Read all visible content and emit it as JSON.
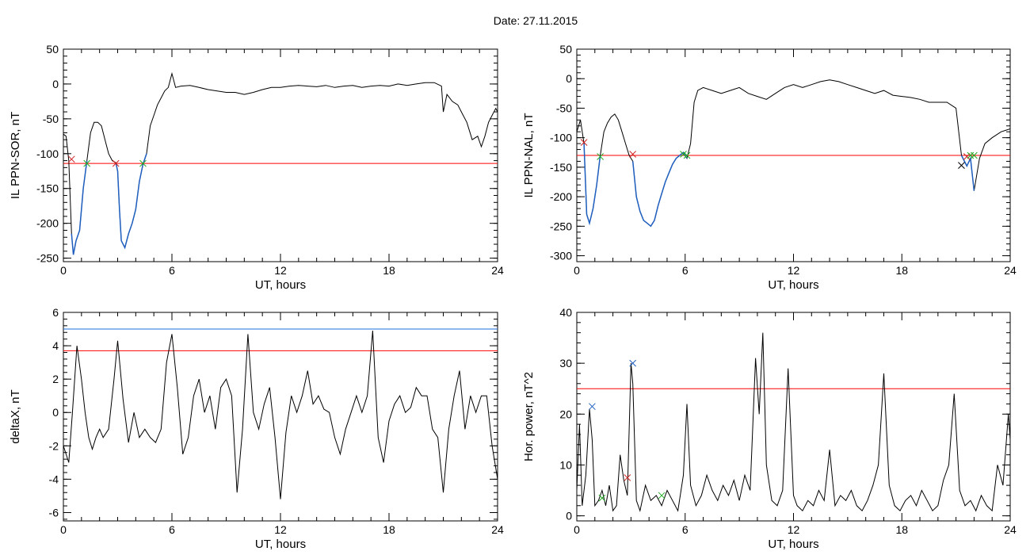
{
  "figure": {
    "title": "Date:  27.11.2015"
  },
  "colors": {
    "series": "#000000",
    "threshold": "#ff0000",
    "highlight": "#1f5fbf",
    "threshold_blue": "#1f6fdf",
    "marker_red": "#cc2222",
    "marker_green": "#22aa22",
    "marker_blue": "#1f5fbf",
    "marker_black": "#000000"
  },
  "chart_data": [
    {
      "type": "line",
      "panel": "top-left",
      "title": "",
      "xlabel": "UT, hours",
      "ylabel": "IL PPN-SOR, nT",
      "xlim": [
        0,
        24
      ],
      "ylim": [
        -255,
        50
      ],
      "xticks": [
        0,
        6,
        12,
        18,
        24
      ],
      "yticks": [
        50,
        0,
        -50,
        -100,
        -150,
        -200,
        -250
      ],
      "threshold": -114,
      "x": [
        0.0,
        0.15,
        0.3,
        0.45,
        0.55,
        0.7,
        0.9,
        1.1,
        1.3,
        1.5,
        1.7,
        1.9,
        2.1,
        2.3,
        2.5,
        2.7,
        2.9,
        3.0,
        3.1,
        3.2,
        3.4,
        3.6,
        3.8,
        4.0,
        4.2,
        4.4,
        4.6,
        4.8,
        5.0,
        5.2,
        5.4,
        5.6,
        5.8,
        5.9,
        6.0,
        6.1,
        6.2,
        6.5,
        7.0,
        7.5,
        8.0,
        8.5,
        9.0,
        9.5,
        10.0,
        10.5,
        11.0,
        11.5,
        12.0,
        12.5,
        13.0,
        13.5,
        14.0,
        14.5,
        15.0,
        15.5,
        16.0,
        16.5,
        17.0,
        17.5,
        18.0,
        18.5,
        19.0,
        19.5,
        20.0,
        20.5,
        20.9,
        21.0,
        21.2,
        21.5,
        21.8,
        22.0,
        22.3,
        22.6,
        22.9,
        23.1,
        23.3,
        23.5,
        23.7,
        23.9,
        24.0
      ],
      "y": [
        -72,
        -75,
        -110,
        -215,
        -245,
        -225,
        -210,
        -150,
        -110,
        -70,
        -55,
        -55,
        -60,
        -80,
        -100,
        -110,
        -113,
        -125,
        -180,
        -225,
        -235,
        -215,
        -200,
        -180,
        -140,
        -115,
        -100,
        -60,
        -45,
        -30,
        -20,
        -10,
        -5,
        5,
        15,
        5,
        -5,
        -3,
        -2,
        -5,
        -8,
        -10,
        -12,
        -12,
        -15,
        -12,
        -8,
        -5,
        -5,
        -3,
        -2,
        -3,
        -4,
        -2,
        -5,
        -3,
        -2,
        -5,
        -3,
        -2,
        -3,
        0,
        -2,
        0,
        2,
        2,
        -3,
        -40,
        -15,
        -25,
        -30,
        -40,
        -55,
        -80,
        -75,
        -90,
        -75,
        -55,
        -45,
        -35,
        -40
      ],
      "highlight_ranges": [
        [
          0.45,
          1.3
        ],
        [
          2.9,
          4.6
        ]
      ],
      "markers": [
        {
          "x": 0.45,
          "y": -108,
          "color": "marker_red"
        },
        {
          "x": 1.3,
          "y": -114,
          "color": "marker_green"
        },
        {
          "x": 2.9,
          "y": -114,
          "color": "marker_red"
        },
        {
          "x": 4.4,
          "y": -114,
          "color": "marker_green"
        }
      ]
    },
    {
      "type": "line",
      "panel": "top-right",
      "title": "",
      "xlabel": "UT, hours",
      "ylabel": "IL PPN-NAL, nT",
      "xlim": [
        0,
        24
      ],
      "ylim": [
        -310,
        50
      ],
      "xticks": [
        0,
        6,
        12,
        18,
        24
      ],
      "yticks": [
        50,
        0,
        -50,
        -100,
        -150,
        -200,
        -250,
        -300
      ],
      "threshold": -130,
      "x": [
        0.0,
        0.2,
        0.4,
        0.55,
        0.7,
        0.9,
        1.1,
        1.3,
        1.5,
        1.7,
        1.9,
        2.1,
        2.3,
        2.5,
        2.7,
        2.9,
        3.1,
        3.3,
        3.5,
        3.7,
        3.9,
        4.1,
        4.3,
        4.5,
        4.7,
        4.9,
        5.1,
        5.3,
        5.5,
        5.7,
        5.9,
        6.1,
        6.3,
        6.5,
        6.7,
        7.0,
        7.5,
        8.0,
        8.5,
        9.0,
        9.5,
        10.0,
        10.5,
        11.0,
        11.5,
        12.0,
        12.5,
        13.0,
        13.5,
        14.0,
        14.5,
        15.0,
        15.5,
        16.0,
        16.5,
        17.0,
        17.5,
        18.0,
        18.5,
        19.0,
        19.5,
        20.0,
        20.5,
        21.0,
        21.3,
        21.6,
        21.8,
        22.0,
        22.3,
        22.6,
        23.0,
        23.5,
        24.0
      ],
      "y": [
        -90,
        -70,
        -110,
        -230,
        -245,
        -220,
        -180,
        -130,
        -90,
        -75,
        -65,
        -60,
        -70,
        -90,
        -110,
        -130,
        -140,
        -200,
        -225,
        -240,
        -245,
        -250,
        -240,
        -215,
        -195,
        -175,
        -160,
        -145,
        -135,
        -130,
        -125,
        -135,
        -110,
        -40,
        -20,
        -15,
        -20,
        -25,
        -20,
        -15,
        -25,
        -30,
        -35,
        -25,
        -15,
        -10,
        -15,
        -10,
        -5,
        -2,
        -5,
        -10,
        -15,
        -20,
        -25,
        -20,
        -28,
        -30,
        -32,
        -35,
        -40,
        -40,
        -40,
        -50,
        -130,
        -148,
        -135,
        -190,
        -135,
        -110,
        -100,
        -90,
        -85
      ],
      "highlight_ranges": [
        [
          0.4,
          1.3
        ],
        [
          3.1,
          6.1
        ],
        [
          21.3,
          22.0
        ]
      ],
      "markers": [
        {
          "x": 0.4,
          "y": -108,
          "color": "marker_red"
        },
        {
          "x": 1.3,
          "y": -132,
          "color": "marker_green"
        },
        {
          "x": 3.1,
          "y": -128,
          "color": "marker_red"
        },
        {
          "x": 5.9,
          "y": -128,
          "color": "marker_green"
        },
        {
          "x": 6.1,
          "y": -130,
          "color": "marker_green"
        },
        {
          "x": 21.3,
          "y": -147,
          "color": "marker_black"
        },
        {
          "x": 21.6,
          "y": -132,
          "color": "marker_red"
        },
        {
          "x": 21.8,
          "y": -130,
          "color": "marker_green"
        },
        {
          "x": 22.0,
          "y": -130,
          "color": "marker_green"
        }
      ]
    },
    {
      "type": "line",
      "panel": "bottom-left",
      "title": "",
      "xlabel": "UT, hours",
      "ylabel": "deltaX, nT",
      "xlim": [
        0,
        24
      ],
      "ylim": [
        -6.5,
        6
      ],
      "xticks": [
        0,
        6,
        12,
        18,
        24
      ],
      "yticks": [
        6,
        4,
        2,
        0,
        -2,
        -4,
        -6
      ],
      "threshold": 3.7,
      "threshold2": 5.0,
      "x": [
        0.0,
        0.3,
        0.5,
        0.75,
        1.0,
        1.2,
        1.4,
        1.6,
        1.8,
        2.0,
        2.2,
        2.5,
        2.8,
        3.0,
        3.3,
        3.6,
        3.9,
        4.2,
        4.5,
        4.8,
        5.1,
        5.4,
        5.7,
        6.0,
        6.3,
        6.6,
        6.9,
        7.2,
        7.5,
        7.8,
        8.1,
        8.4,
        8.7,
        9.0,
        9.3,
        9.6,
        9.9,
        10.2,
        10.5,
        10.8,
        11.1,
        11.4,
        11.7,
        12.0,
        12.3,
        12.6,
        12.9,
        13.2,
        13.5,
        13.8,
        14.1,
        14.4,
        14.7,
        15.0,
        15.3,
        15.6,
        15.9,
        16.2,
        16.5,
        16.8,
        17.1,
        17.4,
        17.7,
        18.0,
        18.3,
        18.6,
        18.9,
        19.2,
        19.5,
        19.8,
        20.1,
        20.4,
        20.7,
        21.0,
        21.3,
        21.6,
        21.9,
        22.2,
        22.5,
        22.8,
        23.1,
        23.4,
        23.7,
        24.0
      ],
      "y": [
        -2,
        -3,
        0,
        4,
        2,
        0,
        -1.5,
        -2.2,
        -1.5,
        -1.0,
        -1.5,
        -1,
        2,
        4.3,
        0.8,
        -1.8,
        0,
        -1.5,
        -1,
        -1.5,
        -1.8,
        -1,
        3,
        4.7,
        1.5,
        -2.5,
        -1.5,
        1,
        2,
        0,
        1,
        -1,
        1.5,
        2,
        1,
        -4.8,
        -1,
        4.7,
        0,
        -1,
        0.5,
        1.5,
        -1.5,
        -5.2,
        -1.2,
        1,
        0,
        1,
        2.5,
        0.5,
        1,
        0.2,
        0,
        -1.5,
        -2.5,
        -1,
        0,
        1,
        0,
        1,
        4.9,
        -1.5,
        -3,
        -0.5,
        0.5,
        1,
        0,
        0.3,
        1.5,
        1,
        1,
        -1,
        -1.5,
        -4.8,
        -1,
        1,
        2.5,
        -1,
        1,
        0,
        1,
        1,
        -2,
        -4
      ],
      "highlight_ranges": [],
      "markers": []
    },
    {
      "type": "line",
      "panel": "bottom-right",
      "title": "",
      "xlabel": "UT, hours",
      "ylabel": "Hor. power, nT^2",
      "xlim": [
        0,
        24
      ],
      "ylim": [
        -1,
        40
      ],
      "xticks": [
        0,
        6,
        12,
        18,
        24
      ],
      "yticks": [
        40,
        30,
        20,
        10,
        0
      ],
      "threshold": 25,
      "x": [
        0.0,
        0.15,
        0.3,
        0.5,
        0.7,
        0.85,
        1.0,
        1.2,
        1.4,
        1.6,
        1.8,
        2.0,
        2.2,
        2.4,
        2.6,
        2.8,
        3.0,
        3.1,
        3.3,
        3.5,
        3.8,
        4.1,
        4.4,
        4.7,
        5.0,
        5.3,
        5.6,
        5.9,
        6.1,
        6.3,
        6.6,
        6.9,
        7.2,
        7.5,
        7.8,
        8.1,
        8.4,
        8.7,
        9.0,
        9.3,
        9.6,
        9.9,
        10.1,
        10.3,
        10.5,
        10.8,
        11.1,
        11.4,
        11.7,
        12.0,
        12.2,
        12.5,
        12.8,
        13.1,
        13.4,
        13.7,
        14.0,
        14.3,
        14.6,
        14.9,
        15.2,
        15.5,
        15.8,
        16.1,
        16.4,
        16.7,
        17.0,
        17.3,
        17.6,
        17.9,
        18.2,
        18.5,
        18.8,
        19.1,
        19.4,
        19.7,
        20.0,
        20.3,
        20.6,
        20.9,
        21.2,
        21.5,
        21.8,
        22.1,
        22.4,
        22.7,
        23.0,
        23.3,
        23.6,
        23.9,
        24.0
      ],
      "y": [
        5,
        18,
        2,
        8,
        21,
        15,
        2,
        3,
        5,
        2,
        6,
        1,
        2,
        12,
        7,
        4,
        30,
        26,
        3,
        1,
        6,
        3,
        4,
        2,
        5,
        3,
        1,
        8,
        22,
        6,
        2,
        4,
        8,
        5,
        3,
        6,
        4,
        7,
        3,
        8,
        5,
        31,
        20,
        36,
        10,
        3,
        2,
        5,
        29,
        4,
        2,
        1,
        3,
        2,
        5,
        3,
        13,
        2,
        4,
        3,
        5,
        2,
        1,
        3,
        6,
        10,
        28,
        6,
        2,
        1,
        3,
        4,
        2,
        5,
        3,
        1,
        2,
        7,
        10,
        24,
        5,
        2,
        3,
        1,
        4,
        2,
        1,
        10,
        6,
        20,
        15
      ],
      "highlight_ranges": [],
      "markers": [
        {
          "x": 0.85,
          "y": 21.5,
          "color": "marker_blue"
        },
        {
          "x": 1.4,
          "y": 3.5,
          "color": "marker_green"
        },
        {
          "x": 2.8,
          "y": 7.5,
          "color": "marker_red"
        },
        {
          "x": 3.1,
          "y": 30,
          "color": "marker_blue"
        },
        {
          "x": 4.7,
          "y": 4,
          "color": "marker_green"
        }
      ]
    }
  ]
}
